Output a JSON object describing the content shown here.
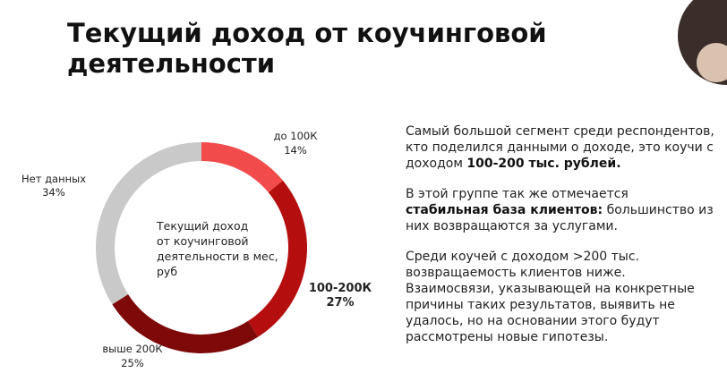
{
  "title": [
    "Текущий доход от коучинговой",
    "деятельности"
  ],
  "chart_data": {
    "type": "donut",
    "center_label": [
      "Текущий доход",
      "от коучинговой",
      "деятельности в мес,",
      "руб"
    ],
    "categories": [
      "до 100К",
      "100-200К",
      "выше 200К",
      "Нет данных"
    ],
    "values": [
      14,
      27,
      25,
      34
    ],
    "value_labels": [
      "14%",
      "27%",
      "25%",
      "34%"
    ],
    "colors": [
      "#f24b4b",
      "#b50e0e",
      "#7d0909",
      "#c9c9c9"
    ]
  },
  "notes": [
    [
      {
        "text": "Самый большой сегмент среди респондентов, кто поделился данными о доходе, это коучи с доходом ",
        "bold": false
      },
      {
        "text": "100-200 тыс. рублей.",
        "bold": true
      }
    ],
    [
      {
        "text": "В этой группе так же отмечается ",
        "bold": false
      },
      {
        "text": "стабильная база клиентов:",
        "bold": true
      },
      {
        "text": " большинство из них возвращаются за услугами.",
        "bold": false
      }
    ],
    [
      {
        "text": "Среди коучей с доходом >200 тыс. возвращаемость клиентов ниже. Взаимосвязи, указывающей на конкретные причины таких результатов, выявить не удалось, но на основании этого будут рассмотрены новые гипотезы.",
        "bold": false
      }
    ]
  ]
}
